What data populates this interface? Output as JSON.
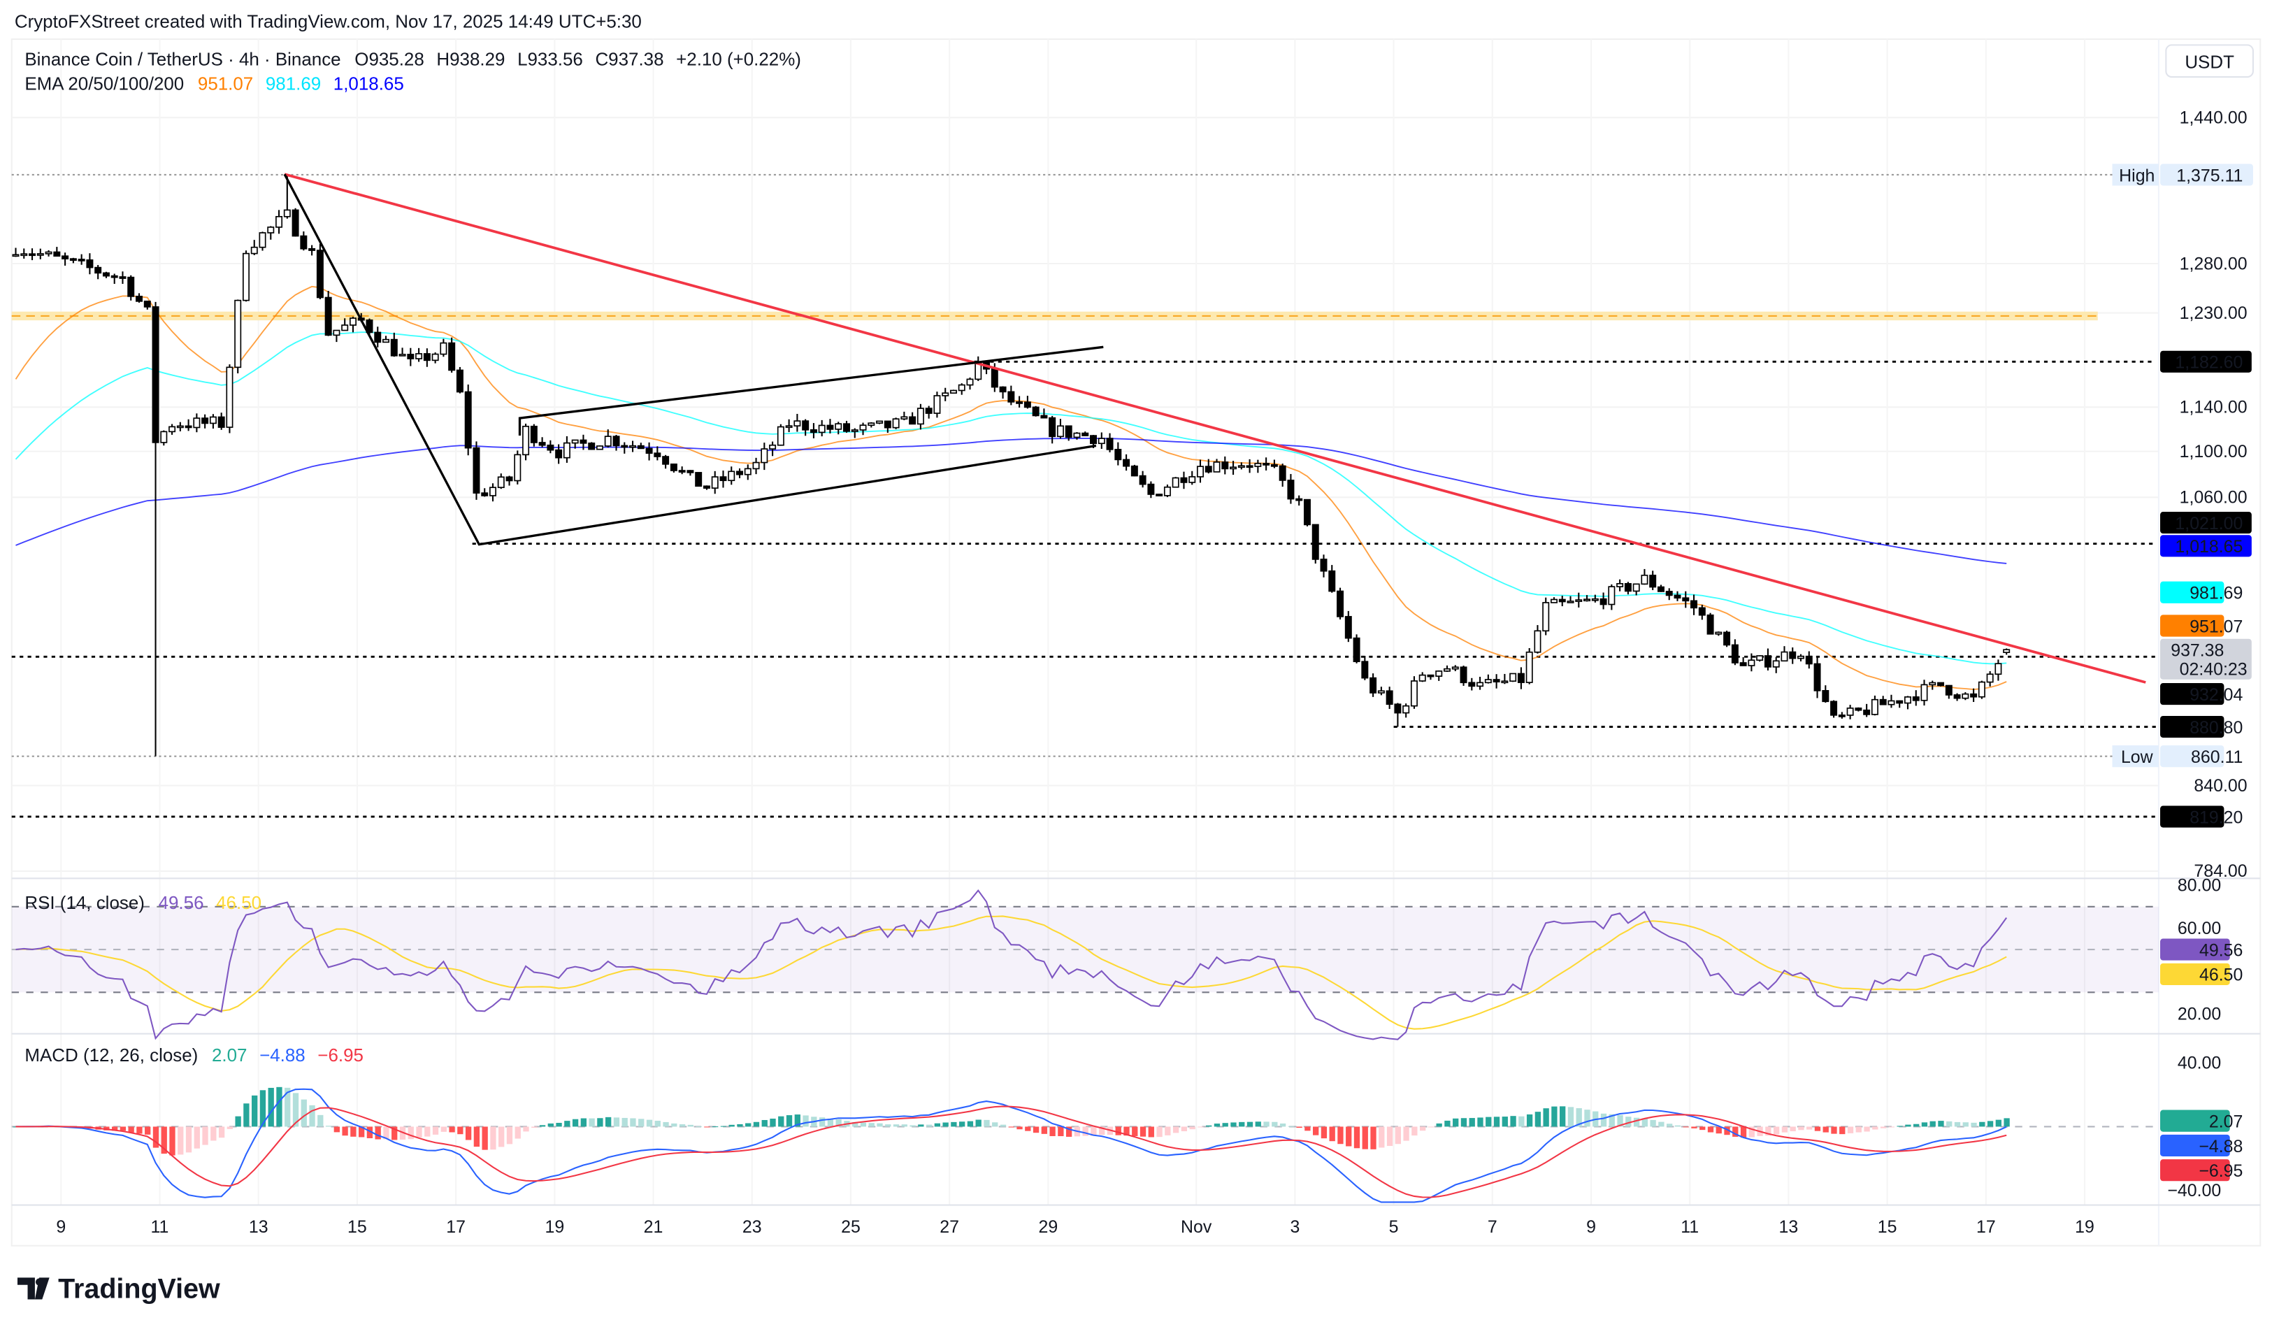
{
  "attribution": "CryptoFXStreet created with TradingView.com, Nov 17, 2025 14:49 UTC+5:30",
  "logo_text": "TradingView",
  "legend": {
    "symbol": "Binance Coin / TetherUS · 4h · Binance",
    "open": "O935.28",
    "high": "H938.29",
    "low": "L933.56",
    "close": "C937.38",
    "change": "+2.10 (+0.22%)",
    "ema_label": "EMA 20/50/100/200",
    "ema20": "951.07",
    "ema50": "981.69",
    "ema200": "1,018.65"
  },
  "currency": "USDT",
  "rsi_legend": {
    "label": "RSI (14, close)",
    "rsi": "49.56",
    "ma": "46.50"
  },
  "macd_legend": {
    "label": "MACD (12, 26, close)",
    "hist": "2.07",
    "macd": "−4.88",
    "signal": "−6.95"
  },
  "colors": {
    "up": "#089981",
    "down": "#f23645",
    "ema20": "#ff8000",
    "ema50": "#00ffff",
    "ema200": "#0000ff",
    "trendline": "#f23645",
    "rsi": "#7e57c2",
    "rsi_ma": "#fdd835",
    "macd": "#2962ff",
    "signal": "#f23645"
  },
  "chart_data": {
    "type": "candlestick",
    "scale": "log",
    "price_ticks": [
      "1,440.00",
      "1,280.00",
      "1,230.00",
      "1,140.00",
      "1,100.00",
      "1,060.00",
      "840.00",
      "784.00"
    ],
    "date_ticks": [
      {
        "label": "9",
        "date": "2025-10-09"
      },
      {
        "label": "11",
        "date": "2025-10-11"
      },
      {
        "label": "13",
        "date": "2025-10-13"
      },
      {
        "label": "15",
        "date": "2025-10-15"
      },
      {
        "label": "17",
        "date": "2025-10-17"
      },
      {
        "label": "19",
        "date": "2025-10-19"
      },
      {
        "label": "21",
        "date": "2025-10-21"
      },
      {
        "label": "23",
        "date": "2025-10-23"
      },
      {
        "label": "25",
        "date": "2025-10-25"
      },
      {
        "label": "27",
        "date": "2025-10-27"
      },
      {
        "label": "29",
        "date": "2025-10-29"
      },
      {
        "label": "Nov",
        "date": "2025-11-01"
      },
      {
        "label": "3",
        "date": "2025-11-03"
      },
      {
        "label": "5",
        "date": "2025-11-05"
      },
      {
        "label": "7",
        "date": "2025-11-07"
      },
      {
        "label": "9",
        "date": "2025-11-09"
      },
      {
        "label": "11",
        "date": "2025-11-11"
      },
      {
        "label": "13",
        "date": "2025-11-13"
      },
      {
        "label": "15",
        "date": "2025-11-15"
      },
      {
        "label": "17",
        "date": "2025-11-17"
      },
      {
        "label": "19",
        "date": "2025-11-19"
      }
    ],
    "close_path": [
      [
        "2025-10-08T00:00",
        1297
      ],
      [
        "2025-10-10T04:00",
        1265
      ],
      [
        "2025-10-10T16:00",
        1230
      ],
      [
        "2025-10-10T20:00",
        1110
      ],
      [
        "2025-10-11T04:00",
        1125
      ],
      [
        "2025-10-12T04:00",
        1125
      ],
      [
        "2025-10-12T16:00",
        1297
      ],
      [
        "2025-10-13T12:00",
        1330
      ],
      [
        "2025-10-14T00:00",
        1290
      ],
      [
        "2025-10-14T08:00",
        1210
      ],
      [
        "2025-10-15T00:00",
        1222
      ],
      [
        "2025-10-16T00:00",
        1180
      ],
      [
        "2025-10-16T16:00",
        1195
      ],
      [
        "2025-10-17T00:00",
        1151
      ],
      [
        "2025-10-17T08:00",
        1062
      ],
      [
        "2025-10-18T00:00",
        1075
      ],
      [
        "2025-10-18T08:00",
        1119
      ],
      [
        "2025-10-19T00:00",
        1100
      ],
      [
        "2025-10-20T00:00",
        1112
      ],
      [
        "2025-10-21T00:00",
        1100
      ],
      [
        "2025-10-21T16:00",
        1075
      ],
      [
        "2025-10-22T00:00",
        1069
      ],
      [
        "2025-10-23T00:00",
        1088
      ],
      [
        "2025-10-23T16:00",
        1125
      ],
      [
        "2025-10-25T00:00",
        1118
      ],
      [
        "2025-10-26T00:00",
        1125
      ],
      [
        "2025-10-27T04:00",
        1159
      ],
      [
        "2025-10-27T12:00",
        1180
      ],
      [
        "2025-10-28T00:00",
        1150
      ],
      [
        "2025-10-29T00:00",
        1119
      ],
      [
        "2025-10-30T00:00",
        1112
      ],
      [
        "2025-10-30T12:00",
        1081
      ],
      [
        "2025-10-31T00:00",
        1062
      ],
      [
        "2025-11-01T00:00",
        1088
      ],
      [
        "2025-11-02T00:00",
        1090
      ],
      [
        "2025-11-02T12:00",
        1081
      ],
      [
        "2025-11-03T00:00",
        1054
      ],
      [
        "2025-11-03T08:00",
        1012
      ],
      [
        "2025-11-03T20:00",
        962
      ],
      [
        "2025-11-04T08:00",
        914
      ],
      [
        "2025-11-05T00:00",
        890
      ],
      [
        "2025-11-05T12:00",
        920
      ],
      [
        "2025-11-06T00:00",
        924
      ],
      [
        "2025-11-06T16:00",
        910
      ],
      [
        "2025-11-07T12:00",
        915
      ],
      [
        "2025-11-08T00:00",
        970
      ],
      [
        "2025-11-09T00:00",
        975
      ],
      [
        "2025-11-10T00:00",
        992
      ],
      [
        "2025-11-11T00:00",
        970
      ],
      [
        "2025-11-12T00:00",
        924
      ],
      [
        "2025-11-13T04:00",
        937
      ],
      [
        "2025-11-13T20:00",
        885
      ],
      [
        "2025-11-14T16:00",
        895
      ],
      [
        "2025-11-16T00:00",
        911
      ],
      [
        "2025-11-16T16:00",
        900
      ],
      [
        "2025-11-17T08:00",
        937.38
      ]
    ],
    "extremes": {
      "high": 1375.11,
      "high_date": "2025-10-13T12:00",
      "low": 860.11,
      "low_date": "2025-10-10T20:00"
    },
    "levels": [
      {
        "label": "1,182.60",
        "value": 1182.6,
        "from": "2025-10-27T12:00"
      },
      {
        "label": "1,021.00",
        "value": 1021.0,
        "from": "2025-10-17T08:00"
      },
      {
        "label": "932.04",
        "value": 932.04,
        "from": "2025-10-08T00:00"
      },
      {
        "label": "880.80",
        "value": 880.8,
        "from": "2025-11-05T00:00"
      },
      {
        "label": "819.20",
        "value": 819.2,
        "from": "2025-10-08T00:00"
      }
    ],
    "zone": {
      "value": 1227,
      "color": "#fbc02d"
    },
    "high_label": "High",
    "high_value": "1,375.11",
    "low_label": "Low",
    "low_value": "860.11",
    "price_tags": {
      "ema200": "1,018.65",
      "ema50": "981.69",
      "ema20": "951.07",
      "last": "937.38",
      "countdown": "02:40:23"
    },
    "rsi_ticks": [
      "80.00",
      "60.00",
      "20.00"
    ],
    "rsi_bands": [
      70,
      50,
      30
    ],
    "macd_ticks": [
      "40.00",
      "−40.00"
    ]
  }
}
